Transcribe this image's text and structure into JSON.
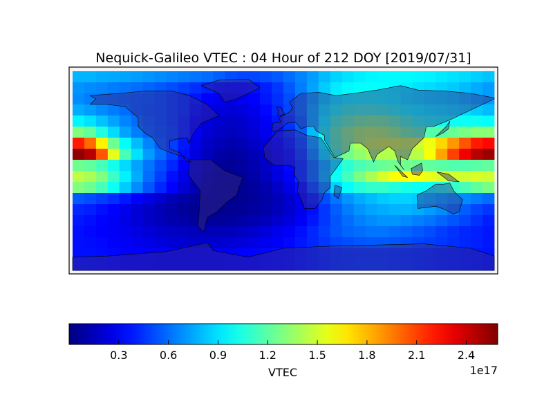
{
  "chart_data": {
    "type": "heatmap",
    "title": "Nequick-Galileo VTEC : 04 Hour of 212 DOY [2019/07/31]",
    "colorbar": {
      "label": "VTEC",
      "multiplier": "1e17",
      "colormap": "jet",
      "range": [
        0.0,
        2.59
      ],
      "ticks": [
        0.3,
        0.6,
        0.9,
        1.2,
        1.5,
        1.8,
        2.1,
        2.4
      ],
      "tick_labels": [
        "0.3",
        "0.6",
        "0.9",
        "1.2",
        "1.5",
        "1.8",
        "2.1",
        "2.4"
      ],
      "orientation": "horizontal",
      "placement": "bottom"
    },
    "map": {
      "projection": "cylindrical",
      "lon_range": [
        -180,
        180
      ],
      "lat_range": [
        -90,
        90
      ],
      "coastlines": true,
      "continents_shaded": true
    },
    "grid_units": "1e17",
    "lon_centers": [
      -175,
      -165,
      -155,
      -145,
      -135,
      -125,
      -115,
      -105,
      -95,
      -85,
      -75,
      -65,
      -55,
      -45,
      -35,
      -25,
      -15,
      -5,
      5,
      15,
      25,
      35,
      45,
      55,
      65,
      75,
      85,
      95,
      105,
      115,
      125,
      135,
      145,
      155,
      165,
      175
    ],
    "lat_centers": [
      85,
      75,
      65,
      55,
      45,
      35,
      25,
      15,
      5,
      -5,
      -15,
      -25,
      -35,
      -45,
      -55,
      -65,
      -75,
      -85
    ],
    "values": [
      [
        0.78,
        0.78,
        0.76,
        0.75,
        0.74,
        0.72,
        0.7,
        0.68,
        0.66,
        0.64,
        0.62,
        0.6,
        0.56,
        0.52,
        0.5,
        0.5,
        0.52,
        0.55,
        0.6,
        0.66,
        0.72,
        0.8,
        0.86,
        0.9,
        0.93,
        0.95,
        0.96,
        0.96,
        0.96,
        0.95,
        0.94,
        0.92,
        0.9,
        0.88,
        0.85,
        0.82
      ],
      [
        0.7,
        0.68,
        0.66,
        0.64,
        0.62,
        0.6,
        0.58,
        0.55,
        0.52,
        0.48,
        0.44,
        0.4,
        0.36,
        0.34,
        0.34,
        0.36,
        0.4,
        0.46,
        0.55,
        0.64,
        0.74,
        0.84,
        0.92,
        0.96,
        0.98,
        0.98,
        0.97,
        0.95,
        0.93,
        0.9,
        0.88,
        0.86,
        0.84,
        0.8,
        0.76,
        0.72
      ],
      [
        0.68,
        0.64,
        0.62,
        0.6,
        0.58,
        0.56,
        0.55,
        0.52,
        0.48,
        0.44,
        0.38,
        0.32,
        0.28,
        0.26,
        0.28,
        0.32,
        0.38,
        0.44,
        0.52,
        0.62,
        0.74,
        0.86,
        0.94,
        0.98,
        1.0,
        1.0,
        0.98,
        0.96,
        0.92,
        0.9,
        0.88,
        0.86,
        0.84,
        0.8,
        0.76,
        0.72
      ],
      [
        0.76,
        0.72,
        0.68,
        0.64,
        0.6,
        0.56,
        0.54,
        0.52,
        0.48,
        0.44,
        0.36,
        0.28,
        0.24,
        0.22,
        0.24,
        0.28,
        0.34,
        0.42,
        0.5,
        0.62,
        0.78,
        0.92,
        1.02,
        1.08,
        1.1,
        1.1,
        1.08,
        1.04,
        1.0,
        0.96,
        0.94,
        0.92,
        0.9,
        0.88,
        0.84,
        0.8
      ],
      [
        0.95,
        0.9,
        0.82,
        0.74,
        0.66,
        0.6,
        0.56,
        0.52,
        0.48,
        0.42,
        0.32,
        0.24,
        0.2,
        0.18,
        0.2,
        0.24,
        0.3,
        0.38,
        0.46,
        0.58,
        0.78,
        0.96,
        1.12,
        1.2,
        1.26,
        1.28,
        1.26,
        1.2,
        1.12,
        1.06,
        1.02,
        1.0,
        1.0,
        1.0,
        1.0,
        0.98
      ],
      [
        1.3,
        1.22,
        1.05,
        0.88,
        0.74,
        0.64,
        0.58,
        0.54,
        0.5,
        0.42,
        0.3,
        0.22,
        0.18,
        0.16,
        0.18,
        0.22,
        0.28,
        0.36,
        0.44,
        0.56,
        0.8,
        1.02,
        1.2,
        1.32,
        1.4,
        1.42,
        1.4,
        1.34,
        1.26,
        1.2,
        1.18,
        1.2,
        1.24,
        1.28,
        1.32,
        1.32
      ],
      [
        2.2,
        2.0,
        1.65,
        1.25,
        0.98,
        0.8,
        0.66,
        0.56,
        0.48,
        0.38,
        0.26,
        0.18,
        0.14,
        0.12,
        0.14,
        0.18,
        0.24,
        0.32,
        0.4,
        0.52,
        0.76,
        0.98,
        1.18,
        1.3,
        1.4,
        1.48,
        1.5,
        1.5,
        1.48,
        1.5,
        1.58,
        1.72,
        1.88,
        2.05,
        2.2,
        2.25
      ],
      [
        2.55,
        2.45,
        2.05,
        1.55,
        1.15,
        0.9,
        0.72,
        0.6,
        0.48,
        0.36,
        0.24,
        0.16,
        0.1,
        0.08,
        0.1,
        0.14,
        0.2,
        0.28,
        0.36,
        0.48,
        0.7,
        0.92,
        1.12,
        1.26,
        1.34,
        1.4,
        1.42,
        1.42,
        1.4,
        1.44,
        1.6,
        1.85,
        2.1,
        2.3,
        2.45,
        2.52
      ],
      [
        1.25,
        1.22,
        1.15,
        1.02,
        0.88,
        0.74,
        0.62,
        0.52,
        0.42,
        0.3,
        0.2,
        0.12,
        0.08,
        0.06,
        0.08,
        0.12,
        0.18,
        0.26,
        0.34,
        0.44,
        0.62,
        0.8,
        0.96,
        1.08,
        1.16,
        1.2,
        1.24,
        1.26,
        1.26,
        1.24,
        1.22,
        1.2,
        1.18,
        1.18,
        1.2,
        1.22
      ],
      [
        1.45,
        1.4,
        1.3,
        1.12,
        0.94,
        0.76,
        0.6,
        0.48,
        0.36,
        0.26,
        0.18,
        0.1,
        0.06,
        0.05,
        0.06,
        0.1,
        0.16,
        0.24,
        0.32,
        0.44,
        0.62,
        0.82,
        1.0,
        1.14,
        1.28,
        1.4,
        1.52,
        1.6,
        1.62,
        1.6,
        1.56,
        1.52,
        1.5,
        1.5,
        1.52,
        1.5
      ],
      [
        1.3,
        1.25,
        1.15,
        1.0,
        0.84,
        0.68,
        0.54,
        0.42,
        0.32,
        0.22,
        0.14,
        0.08,
        0.05,
        0.04,
        0.05,
        0.08,
        0.12,
        0.18,
        0.26,
        0.36,
        0.52,
        0.7,
        0.86,
        0.98,
        1.06,
        1.1,
        1.1,
        1.06,
        1.02,
        1.0,
        1.0,
        1.04,
        1.1,
        1.16,
        1.22,
        1.28
      ],
      [
        0.55,
        0.52,
        0.48,
        0.44,
        0.38,
        0.32,
        0.26,
        0.2,
        0.14,
        0.1,
        0.07,
        0.05,
        0.04,
        0.04,
        0.05,
        0.07,
        0.1,
        0.14,
        0.2,
        0.28,
        0.4,
        0.52,
        0.62,
        0.7,
        0.76,
        0.8,
        0.84,
        0.86,
        0.86,
        0.84,
        0.8,
        0.76,
        0.72,
        0.68,
        0.64,
        0.6
      ],
      [
        0.42,
        0.4,
        0.36,
        0.32,
        0.28,
        0.22,
        0.18,
        0.14,
        0.1,
        0.07,
        0.05,
        0.04,
        0.04,
        0.05,
        0.06,
        0.08,
        0.11,
        0.15,
        0.2,
        0.27,
        0.36,
        0.46,
        0.56,
        0.64,
        0.7,
        0.74,
        0.76,
        0.78,
        0.78,
        0.76,
        0.72,
        0.68,
        0.62,
        0.56,
        0.5,
        0.46
      ],
      [
        0.38,
        0.36,
        0.33,
        0.3,
        0.26,
        0.22,
        0.18,
        0.15,
        0.12,
        0.1,
        0.08,
        0.07,
        0.07,
        0.08,
        0.1,
        0.12,
        0.15,
        0.19,
        0.24,
        0.3,
        0.38,
        0.46,
        0.54,
        0.6,
        0.65,
        0.68,
        0.7,
        0.7,
        0.68,
        0.65,
        0.62,
        0.58,
        0.54,
        0.5,
        0.45,
        0.4
      ],
      [
        0.36,
        0.34,
        0.32,
        0.3,
        0.28,
        0.25,
        0.22,
        0.2,
        0.18,
        0.16,
        0.15,
        0.14,
        0.14,
        0.15,
        0.17,
        0.2,
        0.23,
        0.27,
        0.31,
        0.36,
        0.42,
        0.48,
        0.54,
        0.58,
        0.6,
        0.62,
        0.62,
        0.6,
        0.58,
        0.55,
        0.52,
        0.48,
        0.45,
        0.42,
        0.4,
        0.38
      ],
      [
        0.36,
        0.35,
        0.34,
        0.32,
        0.3,
        0.28,
        0.26,
        0.24,
        0.22,
        0.21,
        0.2,
        0.2,
        0.2,
        0.21,
        0.23,
        0.25,
        0.28,
        0.31,
        0.34,
        0.38,
        0.42,
        0.46,
        0.5,
        0.52,
        0.54,
        0.55,
        0.55,
        0.54,
        0.52,
        0.5,
        0.48,
        0.46,
        0.44,
        0.42,
        0.4,
        0.38
      ],
      [
        0.36,
        0.36,
        0.35,
        0.34,
        0.33,
        0.32,
        0.31,
        0.3,
        0.3,
        0.3,
        0.3,
        0.3,
        0.3,
        0.31,
        0.32,
        0.33,
        0.34,
        0.35,
        0.36,
        0.38,
        0.4,
        0.42,
        0.44,
        0.45,
        0.46,
        0.46,
        0.46,
        0.45,
        0.44,
        0.43,
        0.42,
        0.41,
        0.4,
        0.39,
        0.38,
        0.37
      ],
      [
        0.36,
        0.36,
        0.35,
        0.34,
        0.33,
        0.32,
        0.31,
        0.3,
        0.3,
        0.3,
        0.3,
        0.3,
        0.3,
        0.31,
        0.32,
        0.33,
        0.34,
        0.35,
        0.36,
        0.38,
        0.4,
        0.42,
        0.44,
        0.45,
        0.46,
        0.46,
        0.46,
        0.45,
        0.44,
        0.43,
        0.42,
        0.41,
        0.4,
        0.39,
        0.38,
        0.37
      ]
    ]
  }
}
